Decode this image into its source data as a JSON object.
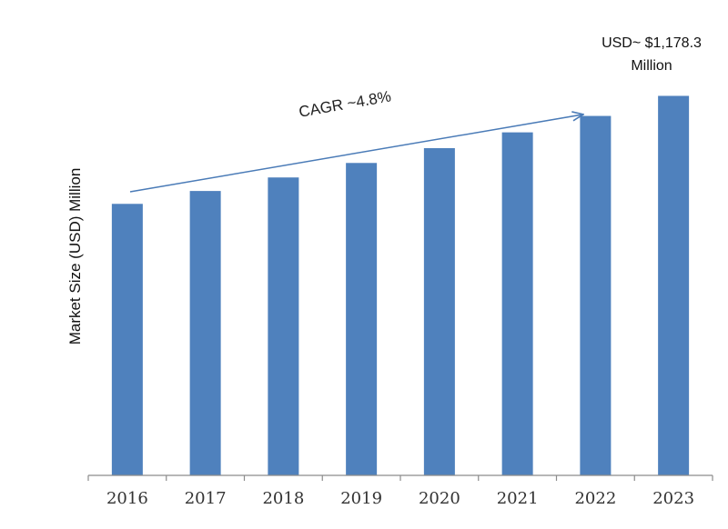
{
  "chart_data": {
    "type": "bar",
    "title": "",
    "xlabel": "",
    "ylabel": "Market Size (USD) Million",
    "categories": [
      "2016",
      "2017",
      "2018",
      "2019",
      "2020",
      "2021",
      "2022",
      "2023"
    ],
    "values": [
      843,
      883,
      925,
      970,
      1016,
      1065,
      1116,
      1178.3
    ],
    "ylim": [
      0,
      1380
    ],
    "grid": false,
    "legend": "none",
    "bar_color": "#4f81bd",
    "annotations": {
      "cagr_label": "CAGR ~4.8%",
      "last_value_line1": "USD~ $1,178.3",
      "last_value_line2": "Million"
    }
  }
}
